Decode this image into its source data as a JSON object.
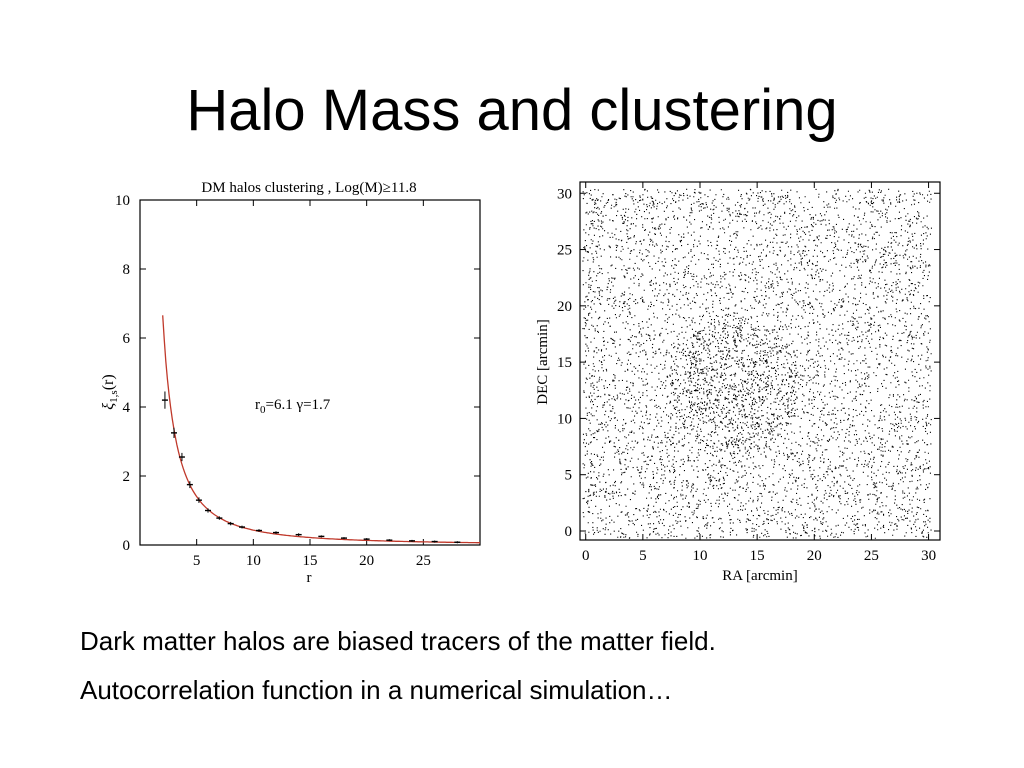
{
  "slide": {
    "title": "Halo Mass and clustering",
    "caption": [
      "Dark matter halos are biased tracers of the matter field.",
      "Autocorrelation function in a numerical simulation…"
    ]
  },
  "chart_data": [
    {
      "type": "scatter",
      "title": "DM halos clustering , Log(M)≥11.8",
      "xlabel": "r",
      "ylabel": "ξ1,s(r)",
      "annotation": "r0=6.1 γ=1.7",
      "xlim": [
        0,
        30
      ],
      "ylim": [
        0,
        10
      ],
      "xticks": [
        5,
        10,
        15,
        20,
        25
      ],
      "yticks": [
        0,
        2,
        4,
        6,
        8,
        10
      ],
      "grid": false,
      "series": [
        {
          "kind": "points-with-errorbars",
          "x": [
            2.2,
            3.0,
            3.7,
            4.4,
            5.2,
            6.0,
            7.0,
            8.0,
            9.0,
            10.5,
            12.0,
            14.0,
            16.0,
            18.0,
            20.0,
            22.0,
            24.0,
            26.0,
            28.0
          ],
          "y": [
            4.2,
            3.25,
            2.55,
            1.75,
            1.3,
            1.0,
            0.78,
            0.62,
            0.52,
            0.42,
            0.36,
            0.3,
            0.25,
            0.2,
            0.17,
            0.14,
            0.12,
            0.1,
            0.08
          ],
          "err": [
            0.25,
            0.15,
            0.12,
            0.1,
            0.08,
            0.06,
            0.05,
            0.05,
            0.04,
            0.04,
            0.04,
            0.04,
            0.03,
            0.03,
            0.03,
            0.03,
            0.03,
            0.03,
            0.03
          ]
        },
        {
          "kind": "power-law-fit",
          "r0": 6.1,
          "gamma": 1.7,
          "x_start": 2.0,
          "x_end": 30,
          "color": "#c0392b"
        }
      ]
    },
    {
      "type": "scatter",
      "xlabel": "RA [arcmin]",
      "ylabel": "DEC [arcmin]",
      "xlim": [
        -0.5,
        31
      ],
      "ylim": [
        -0.8,
        31
      ],
      "xticks": [
        0,
        5,
        10,
        15,
        20,
        25,
        30
      ],
      "yticks": [
        0,
        5,
        10,
        15,
        20,
        25,
        30
      ],
      "grid": false,
      "point_color": "#000000",
      "point_count": 6500,
      "note": "dense random point field of simulated halo positions, denser near RA≈13, DEC≈13"
    }
  ]
}
